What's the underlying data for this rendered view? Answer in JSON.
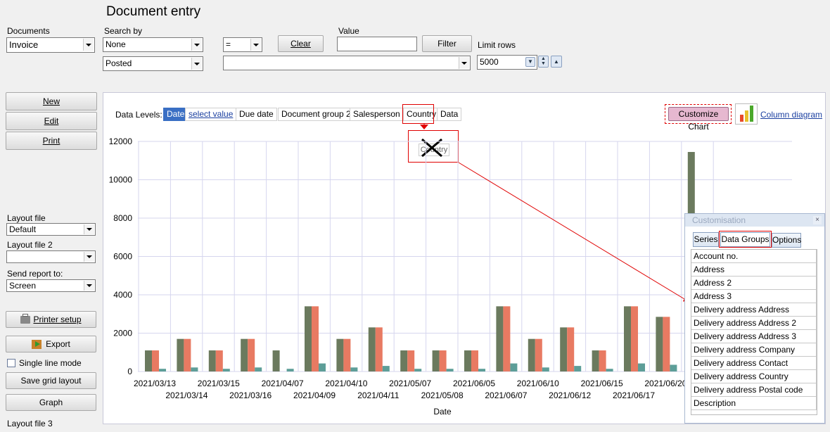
{
  "title": "Document entry",
  "filters": {
    "documents_label": "Documents",
    "documents_value": "Invoice",
    "search_by_label": "Search by",
    "search_by_value": "None",
    "operator_value": "=",
    "clear_label": "Clear",
    "value_label": "Value",
    "value_text": "",
    "filter_label": "Filter",
    "limit_rows_label": "Limit rows",
    "limit_rows_value": "5000",
    "status_value": "Posted",
    "second_combo_value": ""
  },
  "actions": {
    "new": "New",
    "edit": "Edit",
    "print": "Print"
  },
  "sidebar": {
    "layout_file_label": "Layout file",
    "layout_file_value": "Default",
    "layout_file2_label": "Layout file 2",
    "layout_file2_value": "",
    "send_report_label": "Send report to:",
    "send_report_value": "Screen",
    "printer_setup": "Printer setup",
    "export": "Export",
    "single_line_mode": "Single line mode",
    "save_grid_layout": "Save grid layout",
    "graph": "Graph",
    "layout_file3_label": "Layout file 3"
  },
  "data_levels": {
    "label": "Data Levels:",
    "items": [
      "Date",
      "select value",
      "Due date",
      "Document group 2",
      "Salesperson",
      "Country",
      "Data"
    ]
  },
  "drag_ghost": "Country",
  "customize_chart": "Customize Chart",
  "column_diagram": "Column diagram",
  "colors": {
    "series1": "#6b7a5e",
    "series2": "#e87a62",
    "series3": "#5d9e98",
    "accent": "#3a6fc4",
    "highlight": "#e00000"
  },
  "chart_data": {
    "type": "bar",
    "xlabel": "Date",
    "ylabel": "",
    "ylim": [
      0,
      12000
    ],
    "yticks": [
      0,
      2000,
      4000,
      6000,
      8000,
      10000,
      12000
    ],
    "grid": true,
    "categories": [
      "2021/03/13",
      "2021/03/14",
      "2021/03/15",
      "2021/03/16",
      "2021/04/07",
      "2021/04/09",
      "2021/04/10",
      "2021/04/11",
      "2021/05/07",
      "2021/05/08",
      "2021/06/05",
      "2021/06/07",
      "2021/06/10",
      "2021/06/12",
      "2021/06/15",
      "2021/06/17",
      "2021/06/20",
      ""
    ],
    "series": [
      {
        "values": [
          1100,
          1700,
          1100,
          1700,
          1100,
          3400,
          1700,
          2300,
          1100,
          1100,
          1100,
          3400,
          1700,
          2300,
          1100,
          3400,
          2850,
          11450
        ]
      },
      {
        "values": [
          1100,
          1700,
          1100,
          1700,
          0,
          3400,
          1700,
          2300,
          1100,
          1100,
          1100,
          3400,
          1700,
          2300,
          1100,
          3400,
          2850,
          0
        ]
      },
      {
        "values": [
          140,
          210,
          140,
          210,
          140,
          420,
          210,
          290,
          140,
          140,
          140,
          420,
          210,
          290,
          140,
          420,
          350,
          0
        ]
      }
    ]
  },
  "customisation": {
    "title": "Customisation",
    "close": "×",
    "tabs": [
      "Series",
      "Data Groups",
      "Options"
    ],
    "items": [
      "Account no.",
      "Address",
      "Address 2",
      "Address 3",
      "Delivery address Address",
      "Delivery address Address 2",
      "Delivery address Address 3",
      "Delivery address Company",
      "Delivery address Contact",
      "Delivery address Country",
      "Delivery address Postal code",
      "Description"
    ]
  }
}
